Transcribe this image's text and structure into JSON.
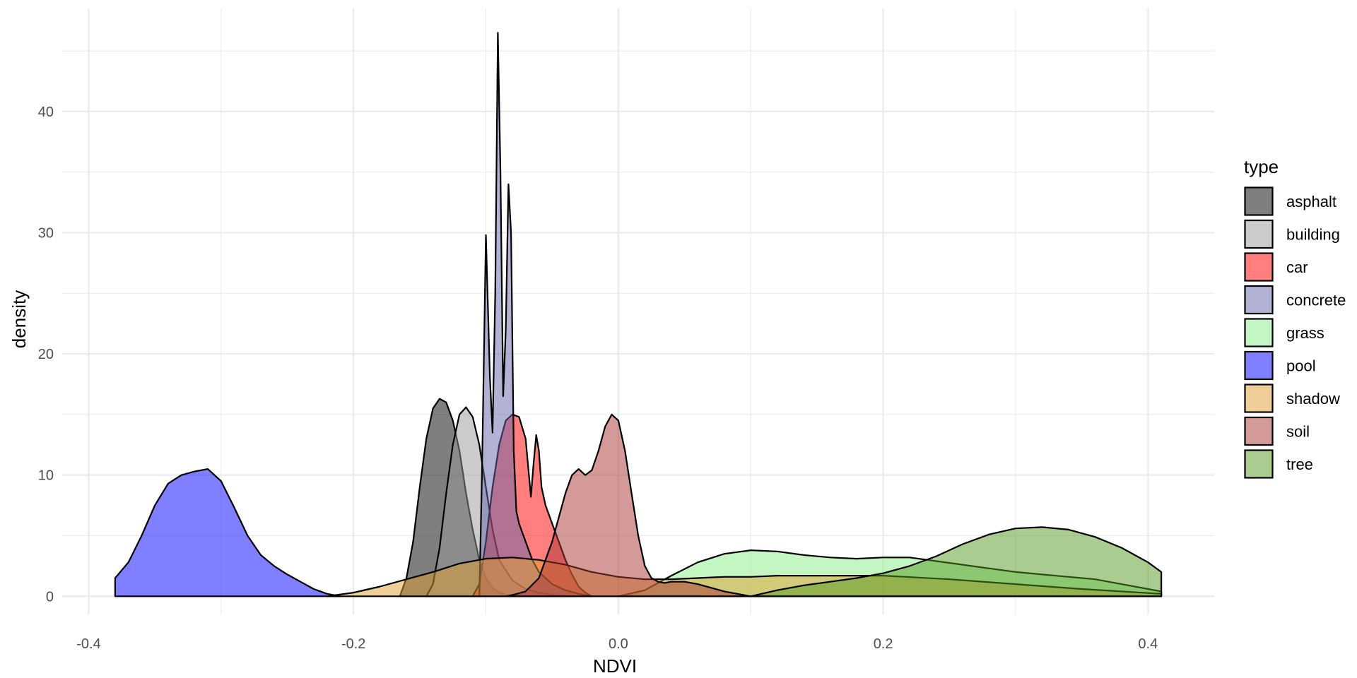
{
  "chart_data": {
    "type": "area",
    "xlabel": "NDVI",
    "ylabel": "density",
    "xlim": [
      -0.42,
      0.45
    ],
    "ylim": [
      -1.5,
      48.5
    ],
    "x_ticks": [
      -0.4,
      -0.2,
      0.0,
      0.2,
      0.4
    ],
    "x_tick_labels": [
      "-0.4",
      "-0.2",
      "0.0",
      "0.2",
      "0.4"
    ],
    "y_ticks": [
      0,
      10,
      20,
      30,
      40
    ],
    "y_tick_labels": [
      "0",
      "10",
      "20",
      "30",
      "40"
    ],
    "grid": true,
    "legend": {
      "title": "type",
      "position": "right"
    },
    "series": [
      {
        "name": "asphalt",
        "color": "#000000",
        "alpha": 0.5,
        "x": [
          -0.165,
          -0.16,
          -0.155,
          -0.15,
          -0.145,
          -0.14,
          -0.135,
          -0.13,
          -0.125,
          -0.12,
          -0.115,
          -0.11,
          -0.105,
          -0.1,
          -0.095,
          -0.09,
          -0.085,
          -0.08
        ],
        "y": [
          0,
          1.5,
          4.5,
          9.0,
          13.0,
          15.5,
          16.3,
          16.0,
          14.5,
          12.0,
          8.5,
          5.5,
          3.0,
          1.5,
          0.7,
          0.3,
          0.1,
          0
        ]
      },
      {
        "name": "building",
        "color": "#999999",
        "alpha": 0.5,
        "x": [
          -0.145,
          -0.14,
          -0.135,
          -0.13,
          -0.125,
          -0.12,
          -0.115,
          -0.11,
          -0.105,
          -0.1,
          -0.095,
          -0.09,
          -0.08,
          -0.07,
          -0.06,
          -0.05,
          -0.04
        ],
        "y": [
          0,
          1.0,
          4.0,
          8.5,
          12.5,
          15.0,
          15.6,
          14.8,
          12.5,
          9.0,
          5.5,
          3.0,
          1.3,
          0.6,
          0.3,
          0.1,
          0
        ]
      },
      {
        "name": "car",
        "color": "#ff0000",
        "alpha": 0.5,
        "x": [
          -0.11,
          -0.105,
          -0.1,
          -0.095,
          -0.09,
          -0.085,
          -0.08,
          -0.075,
          -0.07,
          -0.066,
          -0.064,
          -0.062,
          -0.06,
          -0.058,
          -0.055,
          -0.05,
          -0.045,
          -0.04,
          -0.035,
          -0.03,
          -0.025,
          -0.02
        ],
        "y": [
          0,
          1.0,
          4.5,
          9.0,
          12.5,
          14.5,
          15.0,
          14.8,
          13.0,
          8.2,
          11.0,
          13.3,
          12.0,
          9.0,
          7.5,
          6.0,
          4.5,
          3.0,
          1.8,
          0.8,
          0.3,
          0
        ]
      },
      {
        "name": "concrete",
        "color": "#6666aa",
        "alpha": 0.5,
        "x": [
          -0.105,
          -0.103,
          -0.1,
          -0.097,
          -0.095,
          -0.093,
          -0.091,
          -0.089,
          -0.087,
          -0.085,
          -0.083,
          -0.081,
          -0.079,
          -0.077,
          -0.075,
          -0.07,
          -0.065,
          -0.06,
          -0.05,
          -0.04,
          -0.03,
          -0.02
        ],
        "y": [
          0,
          10.0,
          29.8,
          18.0,
          13.5,
          25.0,
          46.5,
          35.0,
          16.5,
          22.0,
          34.0,
          30.0,
          12.0,
          7.0,
          6.0,
          4.5,
          3.0,
          2.0,
          1.0,
          0.5,
          0.2,
          0
        ]
      },
      {
        "name": "grass",
        "color": "#88ee88",
        "alpha": 0.5,
        "x": [
          0.0,
          0.02,
          0.04,
          0.06,
          0.08,
          0.1,
          0.12,
          0.14,
          0.16,
          0.18,
          0.2,
          0.22,
          0.24,
          0.26,
          0.28,
          0.3,
          0.32,
          0.34,
          0.36,
          0.38,
          0.4,
          0.41
        ],
        "y": [
          0,
          0.5,
          1.7,
          2.8,
          3.5,
          3.8,
          3.7,
          3.4,
          3.2,
          3.1,
          3.2,
          3.2,
          2.9,
          2.6,
          2.3,
          2.0,
          1.8,
          1.6,
          1.4,
          1.0,
          0.6,
          0.4
        ]
      },
      {
        "name": "pool",
        "color": "#0000ff",
        "alpha": 0.5,
        "x": [
          -0.38,
          -0.37,
          -0.36,
          -0.35,
          -0.34,
          -0.33,
          -0.32,
          -0.31,
          -0.3,
          -0.29,
          -0.28,
          -0.27,
          -0.26,
          -0.25,
          -0.24,
          -0.23,
          -0.22,
          -0.21
        ],
        "y": [
          1.5,
          2.8,
          5.0,
          7.5,
          9.3,
          10.0,
          10.3,
          10.5,
          9.5,
          7.3,
          5.0,
          3.4,
          2.5,
          1.8,
          1.2,
          0.6,
          0.2,
          0
        ]
      },
      {
        "name": "shadow",
        "color": "#e0a030",
        "alpha": 0.5,
        "x": [
          -0.22,
          -0.2,
          -0.18,
          -0.16,
          -0.14,
          -0.12,
          -0.1,
          -0.08,
          -0.06,
          -0.04,
          -0.02,
          0.0,
          0.02,
          0.04,
          0.06,
          0.08,
          0.1,
          0.12,
          0.14,
          0.16,
          0.2,
          0.25,
          0.3,
          0.35,
          0.41
        ],
        "y": [
          0,
          0.3,
          0.8,
          1.4,
          2.0,
          2.7,
          3.1,
          3.2,
          3.0,
          2.6,
          2.0,
          1.6,
          1.4,
          1.4,
          1.5,
          1.6,
          1.6,
          1.7,
          1.7,
          1.7,
          1.7,
          1.4,
          1.0,
          0.6,
          0.2
        ]
      },
      {
        "name": "soil",
        "color": "#aa3333",
        "alpha": 0.5,
        "x": [
          -0.085,
          -0.08,
          -0.07,
          -0.06,
          -0.05,
          -0.04,
          -0.035,
          -0.03,
          -0.025,
          -0.02,
          -0.015,
          -0.01,
          -0.005,
          0.0,
          0.005,
          0.01,
          0.015,
          0.02,
          0.025,
          0.03,
          0.035,
          0.04,
          0.05,
          0.06,
          0.08,
          0.1
        ],
        "y": [
          0,
          0.1,
          0.4,
          1.5,
          4.5,
          8.5,
          10.0,
          10.5,
          10.0,
          10.4,
          12.0,
          14.0,
          15.0,
          14.5,
          12.0,
          8.5,
          5.0,
          2.5,
          1.5,
          1.2,
          1.1,
          1.2,
          1.2,
          1.0,
          0.4,
          0
        ]
      },
      {
        "name": "tree",
        "color": "#559922",
        "alpha": 0.5,
        "x": [
          0.1,
          0.12,
          0.14,
          0.16,
          0.18,
          0.2,
          0.22,
          0.24,
          0.26,
          0.28,
          0.3,
          0.32,
          0.34,
          0.36,
          0.38,
          0.4,
          0.41
        ],
        "y": [
          0,
          0.5,
          0.9,
          1.2,
          1.5,
          1.9,
          2.5,
          3.3,
          4.3,
          5.1,
          5.6,
          5.7,
          5.5,
          4.9,
          4.0,
          2.8,
          2.0
        ]
      }
    ]
  }
}
